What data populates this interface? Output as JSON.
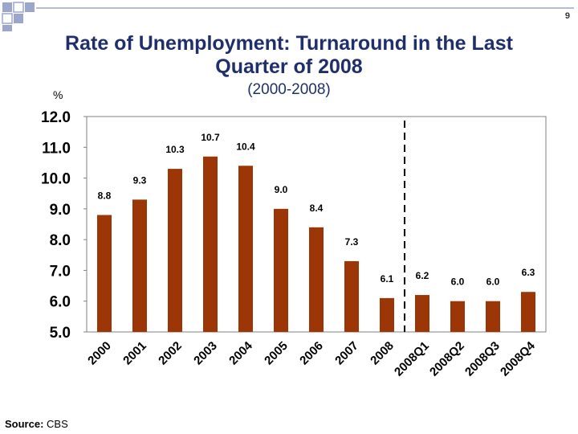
{
  "page": {
    "number": "9",
    "title_line1": "Rate of Unemployment: Turnaround in the Last",
    "title_line2": "Quarter of 2008",
    "subtitle": "(2000-2008)",
    "unit": "%",
    "source_label": "Source:",
    "source_value": "CBS"
  },
  "colors": {
    "bar": "#9c3606",
    "title": "#1f2f6b",
    "deco_square": "#9aa6cc",
    "deco_line": "#9aa6cc"
  },
  "chart_data": {
    "type": "bar",
    "title": "",
    "xlabel": "",
    "ylabel": "%",
    "categories": [
      "2000",
      "2001",
      "2002",
      "2003",
      "2004",
      "2005",
      "2006",
      "2007",
      "2008",
      "2008Q1",
      "2008Q2",
      "2008Q3",
      "2008Q4"
    ],
    "values": [
      8.8,
      9.3,
      10.3,
      10.7,
      10.4,
      9.0,
      8.4,
      7.3,
      6.1,
      6.2,
      6.0,
      6.0,
      6.3
    ],
    "data_labels": [
      "8.8",
      "9.3",
      "10.3",
      "10.7",
      "10.4",
      "9.0",
      "8.4",
      "7.3",
      "6.1",
      "6.2",
      "6.0",
      "6.0",
      "6.3"
    ],
    "ylim": [
      5.0,
      12.0
    ],
    "y_ticks": [
      "5.0",
      "6.0",
      "7.0",
      "8.0",
      "9.0",
      "10.0",
      "11.0",
      "12.0"
    ],
    "grid": false,
    "legend": "none",
    "divider_after_category": "2008"
  }
}
